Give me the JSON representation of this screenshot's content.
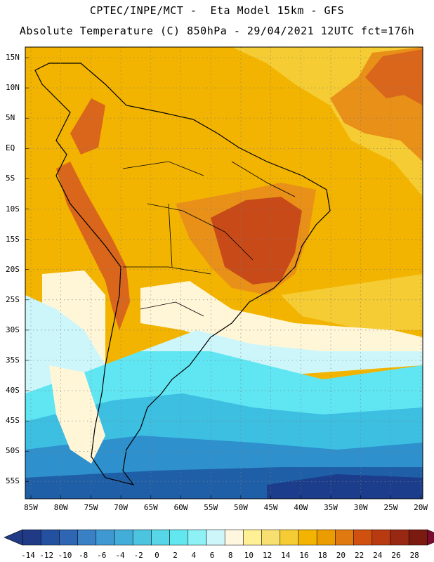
{
  "header": {
    "line1": "CPTEC/INPE/MCT -  Eta Model 15km - GFS",
    "line2": "Absolute Temperature (C) 850hPa - 29/04/2021 12UTC fct=176h"
  },
  "map": {
    "lat_labels": [
      "15N",
      "10N",
      "5N",
      "EQ",
      "5S",
      "10S",
      "15S",
      "20S",
      "25S",
      "30S",
      "35S",
      "40S",
      "45S",
      "50S",
      "55S"
    ],
    "lon_labels": [
      "85W",
      "80W",
      "75W",
      "70W",
      "65W",
      "60W",
      "55W",
      "50W",
      "45W",
      "40W",
      "35W",
      "30W",
      "25W",
      "20W"
    ],
    "colors": {
      "background": "#f2b400",
      "warm_light": "#f5cc33",
      "hot": "#e89018",
      "hotter": "#d9661a",
      "hottest": "#c84a18",
      "cool_pale": "#fff6d8",
      "cyan_light": "#cdf6fb",
      "cyan": "#5fe6f2",
      "teal": "#3dbfe2",
      "blue_mid": "#2e90cc",
      "blue_dark": "#1f5fa8",
      "navy": "#1c3d8c",
      "coast": "#000000"
    }
  },
  "colorbar": {
    "labels": [
      "-14",
      "-12",
      "-10",
      "-8",
      "-6",
      "-4",
      "-2",
      "0",
      "2",
      "4",
      "6",
      "8",
      "10",
      "12",
      "14",
      "16",
      "18",
      "20",
      "22",
      "24",
      "26",
      "28"
    ],
    "colors": [
      "#203a86",
      "#2450a0",
      "#2e66b4",
      "#3a80c4",
      "#3e98d2",
      "#43add9",
      "#4cc3df",
      "#56d6e6",
      "#63e7ee",
      "#8ef1f6",
      "#cdf6fb",
      "#fff6e0",
      "#fff096",
      "#f8e070",
      "#f5cc33",
      "#f2b400",
      "#eb9c00",
      "#e07a10",
      "#d05010",
      "#b83a10",
      "#982812",
      "#7a1a10"
    ],
    "left_arrow": "#203a86",
    "right_arrow": "#7a0c30"
  }
}
